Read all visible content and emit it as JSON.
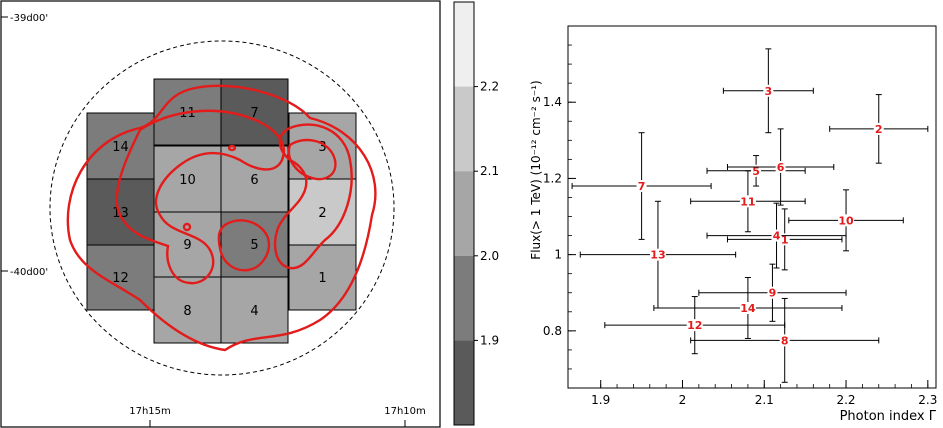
{
  "map": {
    "dec_labels": [
      "-39d00'",
      "-40d00'"
    ],
    "ra_labels": [
      "17h15m",
      "17h10m"
    ],
    "colors": {
      "1.9": "#5a5a5a",
      "2.0": "#7c7c7c",
      "2.1": "#a6a6a6",
      "2.2": "#c9c9c9",
      "2.3": "#efefef",
      "contour": "#e31b1b"
    },
    "regions": [
      {
        "id": "1",
        "value": 2.15
      },
      {
        "id": "2",
        "value": 2.25
      },
      {
        "id": "3",
        "value": 2.15
      },
      {
        "id": "4",
        "value": 2.15
      },
      {
        "id": "5",
        "value": 2.05
      },
      {
        "id": "6",
        "value": 2.15
      },
      {
        "id": "7",
        "value": 1.95
      },
      {
        "id": "8",
        "value": 2.15
      },
      {
        "id": "9",
        "value": 2.15
      },
      {
        "id": "10",
        "value": 2.15
      },
      {
        "id": "11",
        "value": 2.05
      },
      {
        "id": "12",
        "value": 2.05
      },
      {
        "id": "13",
        "value": 1.95
      },
      {
        "id": "14",
        "value": 2.05
      }
    ]
  },
  "colorbar": {
    "tick_labels": [
      "1.9",
      "2.0",
      "2.1",
      "2.2"
    ],
    "levels": [
      1.9,
      2.0,
      2.1,
      2.2
    ]
  },
  "chart_data": {
    "type": "scatter",
    "xlabel": "Photon index Γ",
    "ylabel": "Flux(> 1 TeV)   (10⁻¹² cm⁻² s⁻¹)",
    "xlim": [
      1.86,
      2.31
    ],
    "ylim": [
      0.65,
      1.6
    ],
    "x_ticks": [
      "1.9",
      "2",
      "2.1",
      "2.2",
      "2.3"
    ],
    "y_ticks": [
      "0.8",
      "1",
      "1.2",
      "1.4"
    ],
    "marker_color": "#e31b1b",
    "points": [
      {
        "label": "1",
        "x": 2.125,
        "y": 1.04,
        "xerr": 0.07,
        "yerr": 0.08
      },
      {
        "label": "2",
        "x": 2.24,
        "y": 1.33,
        "xerr": 0.06,
        "yerr": 0.09
      },
      {
        "label": "3",
        "x": 2.105,
        "y": 1.43,
        "xerr": 0.055,
        "yerr": 0.11
      },
      {
        "label": "4",
        "x": 2.115,
        "y": 1.05,
        "xerr": 0.085,
        "yerr": 0.085
      },
      {
        "label": "5",
        "x": 2.09,
        "y": 1.22,
        "xerr": 0.06,
        "yerr": 0.04
      },
      {
        "label": "6",
        "x": 2.12,
        "y": 1.23,
        "xerr": 0.065,
        "yerr": 0.1
      },
      {
        "label": "7",
        "x": 1.95,
        "y": 1.18,
        "xerr": 0.085,
        "yerr": 0.14
      },
      {
        "label": "8",
        "x": 2.125,
        "y": 0.775,
        "xerr": 0.115,
        "yerr": 0.11
      },
      {
        "label": "9",
        "x": 2.11,
        "y": 0.9,
        "xerr": 0.09,
        "yerr": 0.075
      },
      {
        "label": "10",
        "x": 2.2,
        "y": 1.09,
        "xerr": 0.07,
        "yerr": 0.08
      },
      {
        "label": "11",
        "x": 2.08,
        "y": 1.14,
        "xerr": 0.07,
        "yerr": 0.08
      },
      {
        "label": "12",
        "x": 2.015,
        "y": 0.815,
        "xerr": 0.11,
        "yerr": 0.075
      },
      {
        "label": "13",
        "x": 1.97,
        "y": 1.0,
        "xerr": 0.095,
        "yerr": 0.14
      },
      {
        "label": "14",
        "x": 2.08,
        "y": 0.86,
        "xerr": 0.115,
        "yerr": 0.08
      }
    ]
  }
}
